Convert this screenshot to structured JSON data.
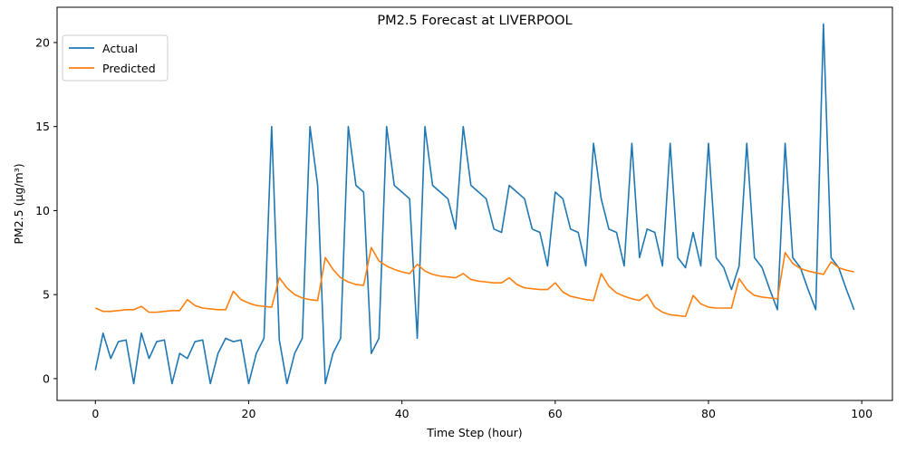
{
  "chart_data": {
    "type": "line",
    "title": "PM2.5 Forecast at LIVERPOOL",
    "xlabel": "Time Step (hour)",
    "ylabel": "PM2.5 (µg/m³)",
    "xlim": [
      -5,
      104
    ],
    "ylim": [
      -1.3,
      22.1
    ],
    "xticks": [
      0,
      20,
      40,
      60,
      80,
      100
    ],
    "yticks": [
      0,
      5,
      10,
      15,
      20
    ],
    "grid": false,
    "legend_position": "top-left",
    "x": [
      0,
      1,
      2,
      3,
      4,
      5,
      6,
      7,
      8,
      9,
      10,
      11,
      12,
      13,
      14,
      15,
      16,
      17,
      18,
      19,
      20,
      21,
      22,
      23,
      24,
      25,
      26,
      27,
      28,
      29,
      30,
      31,
      32,
      33,
      34,
      35,
      36,
      37,
      38,
      39,
      40,
      41,
      42,
      43,
      44,
      45,
      46,
      47,
      48,
      49,
      50,
      51,
      52,
      53,
      54,
      55,
      56,
      57,
      58,
      59,
      60,
      61,
      62,
      63,
      64,
      65,
      66,
      67,
      68,
      69,
      70,
      71,
      72,
      73,
      74,
      75,
      76,
      77,
      78,
      79,
      80,
      81,
      82,
      83,
      84,
      85,
      86,
      87,
      88,
      89,
      90,
      91,
      92,
      93,
      94,
      95,
      96,
      97,
      98,
      99
    ],
    "series": [
      {
        "name": "Actual",
        "color": "#1f77b4",
        "values": [
          0.5,
          2.7,
          1.2,
          2.2,
          2.3,
          -0.3,
          2.7,
          1.2,
          2.2,
          2.3,
          -0.3,
          1.5,
          1.2,
          2.2,
          2.3,
          -0.3,
          1.5,
          2.4,
          2.2,
          2.3,
          -0.3,
          1.5,
          2.4,
          15.0,
          2.3,
          -0.3,
          1.5,
          2.4,
          15.0,
          11.5,
          -0.3,
          1.5,
          2.4,
          15.0,
          11.5,
          11.1,
          1.5,
          2.4,
          15.0,
          11.5,
          11.1,
          10.7,
          2.4,
          15.0,
          11.5,
          11.1,
          10.7,
          8.9,
          15.0,
          11.5,
          11.1,
          10.7,
          8.9,
          8.7,
          11.5,
          11.1,
          10.7,
          8.9,
          8.7,
          6.7,
          11.1,
          10.7,
          8.9,
          8.7,
          6.7,
          14.0,
          10.7,
          8.9,
          8.7,
          6.7,
          14.0,
          7.2,
          8.9,
          8.7,
          6.7,
          14.0,
          7.2,
          6.6,
          8.7,
          6.7,
          14.0,
          7.2,
          6.6,
          5.3,
          6.7,
          14.0,
          7.2,
          6.6,
          5.3,
          4.1,
          14.0,
          7.2,
          6.6,
          5.3,
          4.1,
          21.1,
          7.2,
          6.6,
          5.3,
          4.1
        ]
      },
      {
        "name": "Predicted",
        "color": "#ff7f0e",
        "values": [
          4.2,
          4.0,
          4.0,
          4.05,
          4.1,
          4.1,
          4.3,
          3.95,
          3.95,
          4.0,
          4.05,
          4.05,
          4.7,
          4.35,
          4.2,
          4.15,
          4.1,
          4.1,
          5.2,
          4.7,
          4.5,
          4.35,
          4.3,
          4.25,
          6.0,
          5.4,
          5.0,
          4.8,
          4.7,
          4.65,
          7.2,
          6.5,
          6.0,
          5.75,
          5.6,
          5.55,
          7.8,
          7.0,
          6.7,
          6.5,
          6.35,
          6.25,
          6.8,
          6.4,
          6.2,
          6.1,
          6.05,
          6.0,
          6.25,
          5.9,
          5.8,
          5.75,
          5.7,
          5.7,
          6.0,
          5.6,
          5.4,
          5.35,
          5.3,
          5.3,
          5.7,
          5.15,
          4.9,
          4.8,
          4.7,
          4.65,
          6.25,
          5.5,
          5.1,
          4.9,
          4.75,
          4.65,
          5.0,
          4.25,
          3.95,
          3.8,
          3.75,
          3.7,
          4.95,
          4.45,
          4.25,
          4.2,
          4.2,
          4.2,
          5.95,
          5.3,
          4.95,
          4.85,
          4.8,
          4.75,
          7.5,
          6.85,
          6.55,
          6.4,
          6.3,
          6.2,
          6.95,
          6.6,
          6.45,
          6.35
        ]
      }
    ]
  }
}
